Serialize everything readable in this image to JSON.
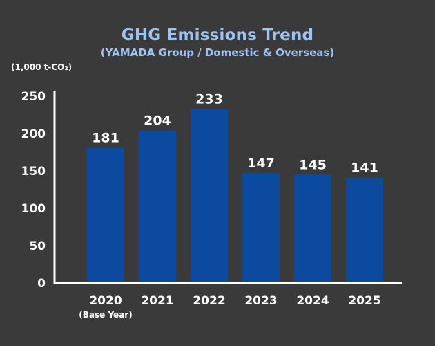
{
  "colors": {
    "background": "#3a3a3a",
    "title": "#9ec3f2",
    "bar": "#0b4a9f",
    "axis": "#ffffff"
  },
  "chart_data": {
    "type": "bar",
    "title": "GHG Emissions Trend",
    "subtitle": "(YAMADA Group / Domestic & Overseas)",
    "unit_label": "(1,000 t-CO₂)",
    "xlabel": "",
    "ylabel": "",
    "ylim": [
      0,
      250
    ],
    "yticks": [
      0,
      50,
      100,
      150,
      200,
      250
    ],
    "grid": false,
    "categories": [
      "2020",
      "2021",
      "2022",
      "2023",
      "2024",
      "2025"
    ],
    "category_notes": [
      "(Base Year)",
      "",
      "",
      "",
      "",
      ""
    ],
    "values": [
      181,
      204,
      233,
      147,
      145,
      141
    ]
  }
}
